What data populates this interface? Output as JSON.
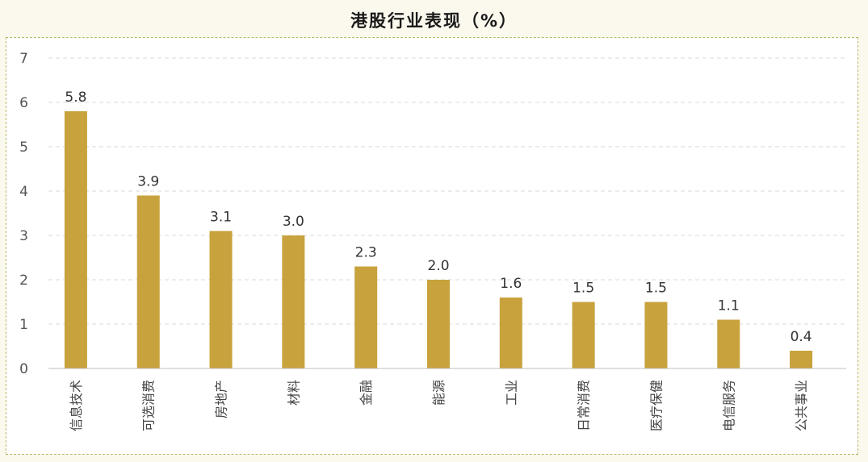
{
  "title": "港股行业表现（%）",
  "chart_data": {
    "type": "bar",
    "title": "港股行业表现（%）",
    "categories": [
      "信息技术",
      "可选消费",
      "房地产",
      "材料",
      "金融",
      "能源",
      "工业",
      "日常消费",
      "医疗保健",
      "电信服务",
      "公共事业"
    ],
    "values": [
      5.8,
      3.9,
      3.1,
      3.0,
      2.3,
      2.0,
      1.6,
      1.5,
      1.5,
      1.1,
      0.4
    ],
    "value_labels": [
      "5.8",
      "3.9",
      "3.1",
      "3.0",
      "2.3",
      "2.0",
      "1.6",
      "1.5",
      "1.5",
      "1.1",
      "0.4"
    ],
    "ylim": [
      0,
      7
    ],
    "yticks": [
      0,
      1,
      2,
      3,
      4,
      5,
      6,
      7
    ],
    "xlabel": "",
    "ylabel": "",
    "grid": true,
    "bar_color": "#c8a23c",
    "grid_color": "#d9d9d9"
  }
}
